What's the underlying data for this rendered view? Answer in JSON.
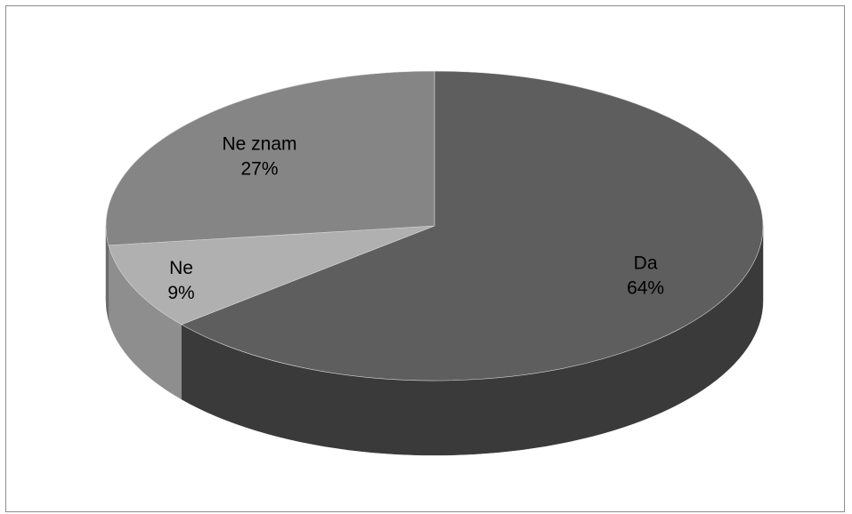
{
  "chart_data": {
    "type": "pie",
    "style": "3d",
    "title": "",
    "legend": "none",
    "slices": [
      {
        "label": "Da",
        "value": 64,
        "value_label": "64%",
        "color": "#5e5e5e",
        "side_color": "#3a3a3a"
      },
      {
        "label": "Ne",
        "value": 9,
        "value_label": "9%",
        "color": "#b0b0b0",
        "side_color": "#8e8e8e"
      },
      {
        "label": "Ne znam",
        "value": 27,
        "value_label": "27%",
        "color": "#858585",
        "side_color": "#6a6a6a"
      }
    ]
  }
}
